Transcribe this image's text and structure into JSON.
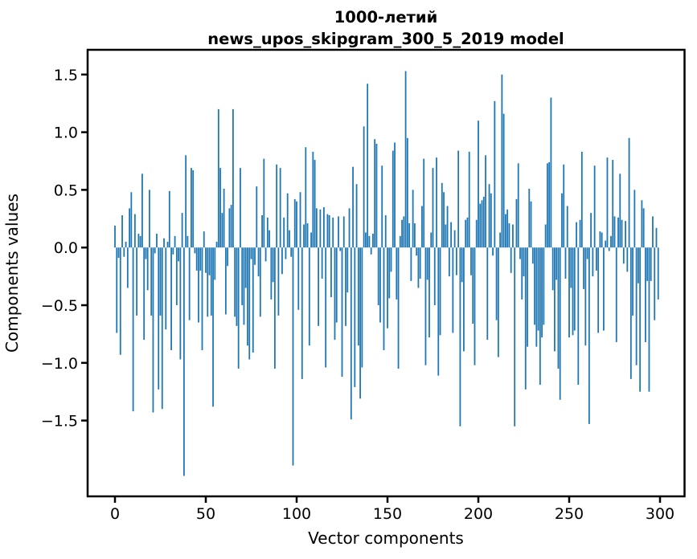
{
  "title": {
    "line1": "1000-летий",
    "line2": "news_upos_skipgram_300_5_2019 model"
  },
  "axes": {
    "xlabel": "Vector components",
    "ylabel": "Components values"
  },
  "chart_data": {
    "type": "bar",
    "title": "1000-летий\nnews_upos_skipgram_300_5_2019 model",
    "xlabel": "Vector components",
    "ylabel": "Components values",
    "bar_color": "#1f77b4",
    "axis_color": "#000000",
    "background_color": "#ffffff",
    "grid": false,
    "legend": false,
    "x_ticks": [
      0,
      50,
      100,
      150,
      200,
      250,
      300
    ],
    "y_ticks": [
      1.5,
      1.0,
      0.5,
      0.0,
      -0.5,
      -1.0,
      -1.5
    ],
    "xlim": [
      -15,
      313.5
    ],
    "ylim": [
      -2.16,
      1.72
    ],
    "n_components": 300,
    "values": [
      0.19,
      -0.74,
      -0.09,
      -0.93,
      0.28,
      -0.08,
      0.05,
      -0.35,
      0.34,
      0.48,
      -1.42,
      0.29,
      -0.59,
      0.12,
      0.1,
      0.64,
      -0.8,
      -0.1,
      -0.37,
      0.5,
      -0.59,
      -1.43,
      -0.05,
      0.12,
      -1.23,
      -0.59,
      -1.4,
      0.08,
      -0.71,
      0.05,
      0.49,
      -0.89,
      -0.06,
      0.1,
      -0.5,
      -0.12,
      -0.97,
      0.3,
      -1.98,
      0.8,
      0.1,
      -0.63,
      0.69,
      0.67,
      -0.05,
      -0.2,
      -0.65,
      -0.2,
      -0.89,
      0.14,
      -0.22,
      -0.6,
      -0.24,
      -0.59,
      -1.38,
      -0.28,
      0.05,
      1.2,
      0.69,
      0.3,
      0.51,
      -0.58,
      -0.16,
      0.34,
      0.37,
      1.2,
      -0.6,
      -0.68,
      -1.05,
      0.69,
      -0.5,
      -0.67,
      -0.35,
      -0.85,
      -0.97,
      -0.1,
      -0.91,
      -0.15,
      0.53,
      -0.25,
      -0.6,
      0.28,
      0.77,
      -0.12,
      0.26,
      0.15,
      -0.45,
      -0.3,
      -1.05,
      0.72,
      -0.59,
      0.69,
      -0.23,
      0.26,
      -0.1,
      0.47,
      0.15,
      -0.08,
      -1.89,
      0.42,
      0.4,
      -0.54,
      0.48,
      -1.14,
      0.2,
      0.87,
      0.21,
      -0.85,
      0.13,
      0.83,
      0.76,
      0.34,
      -0.68,
      0.33,
      -0.27,
      0.35,
      -1.04,
      0.29,
      0.28,
      -0.43,
      0.26,
      -0.8,
      -0.65,
      0.27,
      -0.03,
      -1.12,
      0.27,
      -0.68,
      -0.39,
      0.34,
      -1.49,
      0.7,
      -1.21,
      0.55,
      -0.85,
      -1.31,
      -1.04,
      1.05,
      0.13,
      1.42,
      0.1,
      -0.06,
      0.12,
      0.94,
      0.9,
      -0.5,
      -0.65,
      0.71,
      -0.89,
      0.28,
      -0.7,
      -0.44,
      -0.21,
      0.84,
      0.91,
      -0.45,
      -1.05,
      0.1,
      0.24,
      0.27,
      1.53,
      0.95,
      0.21,
      -0.29,
      0.5,
      0.21,
      -0.07,
      -0.35,
      -0.27,
      0.36,
      0.77,
      -1.02,
      -0.28,
      -0.78,
      0.13,
      0.69,
      -0.5,
      0.78,
      -1.11,
      -0.76,
      0.56,
      0.48,
      0.2,
      0.36,
      -0.25,
      0.22,
      -0.74,
      0.15,
      -0.24,
      0.84,
      -1.55,
      -0.3,
      -0.9,
      0.24,
      0.26,
      0.83,
      -0.24,
      -0.66,
      -1.02,
      0.24,
      1.1,
      0.38,
      0.41,
      0.44,
      0.8,
      -0.8,
      0.55,
      0.47,
      -0.07,
      1.27,
      -0.63,
      -0.95,
      0.13,
      1.5,
      1.16,
      0.29,
      0.33,
      0.21,
      -0.22,
      0.2,
      -1.55,
      0.42,
      0.73,
      -0.1,
      -0.45,
      -0.25,
      -1.23,
      -0.86,
      0.51,
      0.4,
      -0.14,
      -0.67,
      -0.86,
      -0.72,
      -1.19,
      -0.78,
      -0.67,
      0.2,
      0.73,
      0.74,
      1.3,
      -0.37,
      -0.9,
      -0.28,
      -1.05,
      -1.32,
      0.47,
      0.72,
      -0.27,
      0.36,
      -0.78,
      -0.35,
      -0.76,
      -0.72,
      0.22,
      -1.19,
      0.24,
      0.83,
      -0.36,
      -0.85,
      -0.1,
      -1.53,
      0.3,
      -0.25,
      0.71,
      -0.2,
      -0.74,
      0.14,
      0.13,
      -0.72,
      0.06,
      0.78,
      -0.03,
      0.1,
      0.76,
      0.27,
      -0.82,
      0.26,
      0.64,
      0.24,
      -0.14,
      0.23,
      -0.21,
      0.95,
      -1.14,
      -0.59,
      0.5,
      -1.02,
      -0.31,
      -1.25,
      0.41,
      0.34,
      -0.82,
      -0.29,
      -1.25,
      -0.29,
      0.27,
      -0.63,
      0.17,
      -0.45
    ]
  }
}
